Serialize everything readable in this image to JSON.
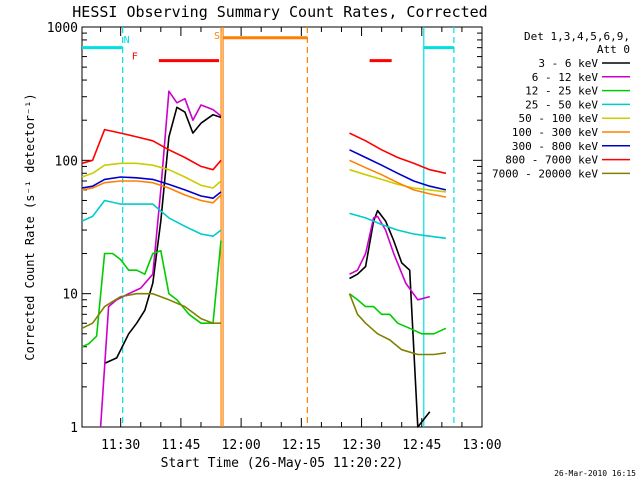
{
  "chart_data": {
    "type": "line",
    "title": "HESSI Observing Summary Count Rates, Corrected",
    "xlabel": "Start Time (26-May-05 11:20:22)",
    "ylabel": "Corrected Count Rate (s⁻¹ detector⁻¹)",
    "yscale": "log",
    "ylim": [
      1,
      1000
    ],
    "xlim": [
      "11:20:22",
      "13:00:00"
    ],
    "x_ticks": [
      "11:30",
      "11:45",
      "12:00",
      "12:15",
      "12:30",
      "12:45",
      "13:00"
    ],
    "y_ticks": [
      "1",
      "10",
      "100",
      "1000"
    ],
    "legend": {
      "placement": "right",
      "title_lines": [
        "Det 1,3,4,5,6,9,",
        "Att 0"
      ]
    },
    "series": [
      {
        "name": "3 - 6 keV",
        "color": "#000000",
        "segments": [
          [
            [
              "11:26",
              3
            ],
            [
              "11:29",
              3.3
            ],
            [
              "11:32",
              5
            ],
            [
              "11:34",
              6
            ],
            [
              "11:36",
              7.5
            ],
            [
              "11:38",
              12
            ],
            [
              "11:40",
              35
            ],
            [
              "11:42",
              150
            ],
            [
              "11:44",
              250
            ],
            [
              "11:46",
              230
            ],
            [
              "11:48",
              160
            ],
            [
              "11:50",
              190
            ],
            [
              "11:53",
              220
            ],
            [
              "11:55",
              210
            ]
          ],
          [
            [
              "12:27",
              13
            ],
            [
              "12:29",
              14
            ],
            [
              "12:31",
              16
            ],
            [
              "12:33",
              35
            ],
            [
              "12:34",
              42
            ],
            [
              "12:36",
              35
            ],
            [
              "12:38",
              25
            ],
            [
              "12:40",
              17
            ],
            [
              "12:42",
              15
            ],
            [
              "12:44",
              1
            ],
            [
              "12:47",
              1.3
            ]
          ]
        ]
      },
      {
        "name": "6 - 12 keV",
        "color": "#cc00cc",
        "segments": [
          [
            [
              "11:25",
              1
            ],
            [
              "11:27",
              8
            ],
            [
              "11:29",
              9
            ],
            [
              "11:32",
              10
            ],
            [
              "11:35",
              11
            ],
            [
              "11:38",
              14
            ],
            [
              "11:40",
              60
            ],
            [
              "11:42",
              330
            ],
            [
              "11:44",
              270
            ],
            [
              "11:46",
              290
            ],
            [
              "11:48",
              200
            ],
            [
              "11:50",
              260
            ],
            [
              "11:53",
              240
            ],
            [
              "11:55",
              215
            ]
          ],
          [
            [
              "12:27",
              14
            ],
            [
              "12:29",
              15
            ],
            [
              "12:31",
              20
            ],
            [
              "12:33",
              37
            ],
            [
              "12:34",
              38
            ],
            [
              "12:36",
              30
            ],
            [
              "12:38",
              20
            ],
            [
              "12:41",
              12
            ],
            [
              "12:44",
              9
            ],
            [
              "12:47",
              9.5
            ]
          ]
        ]
      },
      {
        "name": "12 - 25 keV",
        "color": "#00cc00",
        "segments": [
          [
            [
              "11:20:22",
              4
            ],
            [
              "11:22",
              4.2
            ],
            [
              "11:24",
              4.8
            ],
            [
              "11:26",
              20
            ],
            [
              "11:28",
              20
            ],
            [
              "11:30",
              18
            ],
            [
              "11:32",
              15
            ],
            [
              "11:34",
              15
            ],
            [
              "11:36",
              14
            ],
            [
              "11:38",
              20
            ],
            [
              "11:40",
              21
            ],
            [
              "11:42",
              10
            ],
            [
              "11:44",
              9
            ],
            [
              "11:47",
              7
            ],
            [
              "11:50",
              6
            ],
            [
              "11:53",
              6
            ],
            [
              "11:55",
              25
            ]
          ],
          [
            [
              "12:27",
              10
            ],
            [
              "12:29",
              9
            ],
            [
              "12:31",
              8
            ],
            [
              "12:33",
              8
            ],
            [
              "12:35",
              7
            ],
            [
              "12:37",
              7
            ],
            [
              "12:39",
              6
            ],
            [
              "12:42",
              5.5
            ],
            [
              "12:45",
              5
            ],
            [
              "12:48",
              5
            ],
            [
              "12:51",
              5.5
            ]
          ]
        ]
      },
      {
        "name": "25 - 50 keV",
        "color": "#00cccc",
        "segments": [
          [
            [
              "11:20:22",
              35
            ],
            [
              "11:23",
              38
            ],
            [
              "11:26",
              50
            ],
            [
              "11:30",
              47
            ],
            [
              "11:34",
              47
            ],
            [
              "11:38",
              47
            ],
            [
              "11:42",
              37
            ],
            [
              "11:46",
              32
            ],
            [
              "11:50",
              28
            ],
            [
              "11:53",
              27
            ],
            [
              "11:55",
              30
            ]
          ],
          [
            [
              "12:27",
              40
            ],
            [
              "12:31",
              37
            ],
            [
              "12:35",
              33
            ],
            [
              "12:39",
              30
            ],
            [
              "12:43",
              28
            ],
            [
              "12:47",
              27
            ],
            [
              "12:51",
              26
            ]
          ]
        ]
      },
      {
        "name": "50 - 100 keV",
        "color": "#cccc00",
        "segments": [
          [
            [
              "11:20:22",
              75
            ],
            [
              "11:23",
              80
            ],
            [
              "11:26",
              92
            ],
            [
              "11:30",
              95
            ],
            [
              "11:34",
              95
            ],
            [
              "11:38",
              92
            ],
            [
              "11:42",
              85
            ],
            [
              "11:46",
              75
            ],
            [
              "11:50",
              65
            ],
            [
              "11:53",
              62
            ],
            [
              "11:55",
              70
            ]
          ],
          [
            [
              "12:27",
              85
            ],
            [
              "12:31",
              78
            ],
            [
              "12:35",
              72
            ],
            [
              "12:39",
              66
            ],
            [
              "12:43",
              62
            ],
            [
              "12:47",
              60
            ],
            [
              "12:51",
              58
            ]
          ]
        ]
      },
      {
        "name": "100 - 300 keV",
        "color": "#ff8000",
        "segments": [
          [
            [
              "11:20:22",
              60
            ],
            [
              "11:23",
              62
            ],
            [
              "11:26",
              68
            ],
            [
              "11:30",
              70
            ],
            [
              "11:34",
              70
            ],
            [
              "11:38",
              68
            ],
            [
              "11:42",
              62
            ],
            [
              "11:46",
              55
            ],
            [
              "11:50",
              50
            ],
            [
              "11:53",
              48
            ],
            [
              "11:55",
              55
            ]
          ],
          [
            [
              "12:27",
              100
            ],
            [
              "12:31",
              88
            ],
            [
              "12:35",
              78
            ],
            [
              "12:39",
              68
            ],
            [
              "12:43",
              60
            ],
            [
              "12:47",
              56
            ],
            [
              "12:51",
              53
            ]
          ]
        ]
      },
      {
        "name": "300 - 800 keV",
        "color": "#0000cc",
        "segments": [
          [
            [
              "11:20:22",
              62
            ],
            [
              "11:23",
              64
            ],
            [
              "11:26",
              72
            ],
            [
              "11:30",
              75
            ],
            [
              "11:34",
              74
            ],
            [
              "11:38",
              72
            ],
            [
              "11:42",
              66
            ],
            [
              "11:46",
              60
            ],
            [
              "11:50",
              54
            ],
            [
              "11:53",
              52
            ],
            [
              "11:55",
              58
            ]
          ],
          [
            [
              "12:27",
              120
            ],
            [
              "12:31",
              105
            ],
            [
              "12:35",
              92
            ],
            [
              "12:39",
              80
            ],
            [
              "12:43",
              70
            ],
            [
              "12:47",
              64
            ],
            [
              "12:51",
              60
            ]
          ]
        ]
      },
      {
        "name": "800 - 7000 keV",
        "color": "#ff0000",
        "segments": [
          [
            [
              "11:20:22",
              95
            ],
            [
              "11:23",
              100
            ],
            [
              "11:26",
              170
            ],
            [
              "11:30",
              160
            ],
            [
              "11:34",
              150
            ],
            [
              "11:38",
              140
            ],
            [
              "11:42",
              120
            ],
            [
              "11:46",
              105
            ],
            [
              "11:50",
              90
            ],
            [
              "11:53",
              85
            ],
            [
              "11:55",
              100
            ]
          ],
          [
            [
              "12:27",
              160
            ],
            [
              "12:31",
              140
            ],
            [
              "12:35",
              120
            ],
            [
              "12:39",
              105
            ],
            [
              "12:43",
              95
            ],
            [
              "12:47",
              85
            ],
            [
              "12:51",
              80
            ]
          ]
        ]
      },
      {
        "name": "7000 - 20000 keV",
        "color": "#808000",
        "segments": [
          [
            [
              "11:20:22",
              5.5
            ],
            [
              "11:23",
              6
            ],
            [
              "11:26",
              8
            ],
            [
              "11:30",
              9.5
            ],
            [
              "11:34",
              10
            ],
            [
              "11:38",
              10
            ],
            [
              "11:42",
              9
            ],
            [
              "11:46",
              8
            ],
            [
              "11:50",
              6.5
            ],
            [
              "11:53",
              6
            ],
            [
              "11:55",
              6
            ]
          ],
          [
            [
              "12:27",
              10
            ],
            [
              "12:29",
              7
            ],
            [
              "12:31",
              6
            ],
            [
              "12:34",
              5
            ],
            [
              "12:37",
              4.5
            ],
            [
              "12:40",
              3.8
            ],
            [
              "12:44",
              3.5
            ],
            [
              "12:48",
              3.5
            ],
            [
              "12:51",
              3.6
            ]
          ]
        ]
      }
    ],
    "flags": [
      {
        "label": "",
        "color": "#00e0e0",
        "level": 700,
        "spans": [
          [
            "11:20:22",
            "11:30:30"
          ],
          [
            "12:45:30",
            "12:53:00"
          ]
        ]
      },
      {
        "label": "N",
        "color": "#00e0e0",
        "level": 700,
        "spans": []
      },
      {
        "label": "F",
        "color": "#ff0000",
        "level": 560,
        "spans": [
          [
            "11:39:30",
            "11:54:30"
          ],
          [
            "12:32:00",
            "12:37:30"
          ]
        ]
      },
      {
        "label": "S",
        "color": "#ff8000",
        "level": 830,
        "spans": [
          [
            "11:55:30",
            "12:16:30"
          ]
        ]
      }
    ],
    "vertical_markers": [
      {
        "x": "11:30:30",
        "color": "#00e0e0",
        "style": "dashed"
      },
      {
        "x": "11:55:00",
        "color": "#ff8000",
        "style": "solid"
      },
      {
        "x": "11:55:30",
        "color": "#ff8000",
        "style": "solid"
      },
      {
        "x": "12:16:30",
        "color": "#ff8000",
        "style": "dashed"
      },
      {
        "x": "12:45:30",
        "color": "#00e0e0",
        "style": "solid"
      },
      {
        "x": "12:53:00",
        "color": "#00e0e0",
        "style": "dashed"
      }
    ]
  },
  "footer": {
    "timestamp": "26-Mar-2010 16:15"
  }
}
